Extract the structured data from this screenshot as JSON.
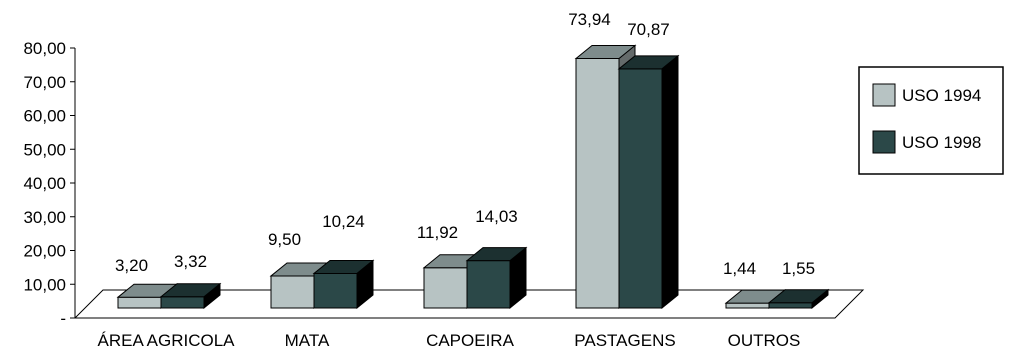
{
  "chart_data": {
    "type": "bar",
    "three_d": true,
    "categories": [
      "ÁREA AGRICOLA",
      "MATA",
      "CAPOEIRA",
      "PASTAGENS",
      "OUTROS"
    ],
    "series": [
      {
        "name": "USO 1994",
        "values": [
          3.2,
          9.5,
          11.92,
          73.94,
          1.44
        ],
        "value_labels": [
          "3,20",
          "9,50",
          "11,92",
          "73,94",
          "1,44"
        ],
        "color": "#b7c3c3"
      },
      {
        "name": "USO 1998",
        "values": [
          3.32,
          10.24,
          14.03,
          70.87,
          1.55
        ],
        "value_labels": [
          "3,32",
          "10,24",
          "14,03",
          "70,87",
          "1,55"
        ],
        "color": "#2b4848"
      }
    ],
    "y_ticks": [
      {
        "value": 0,
        "label": "-"
      },
      {
        "value": 10,
        "label": "10,00"
      },
      {
        "value": 20,
        "label": "20,00"
      },
      {
        "value": 30,
        "label": "30,00"
      },
      {
        "value": 40,
        "label": "40,00"
      },
      {
        "value": 50,
        "label": "50,00"
      },
      {
        "value": 60,
        "label": "60,00"
      },
      {
        "value": 70,
        "label": "70,00"
      },
      {
        "value": 80,
        "label": "80,00"
      }
    ],
    "ylim": [
      0,
      80
    ],
    "grid": false,
    "legend_position": "right"
  }
}
